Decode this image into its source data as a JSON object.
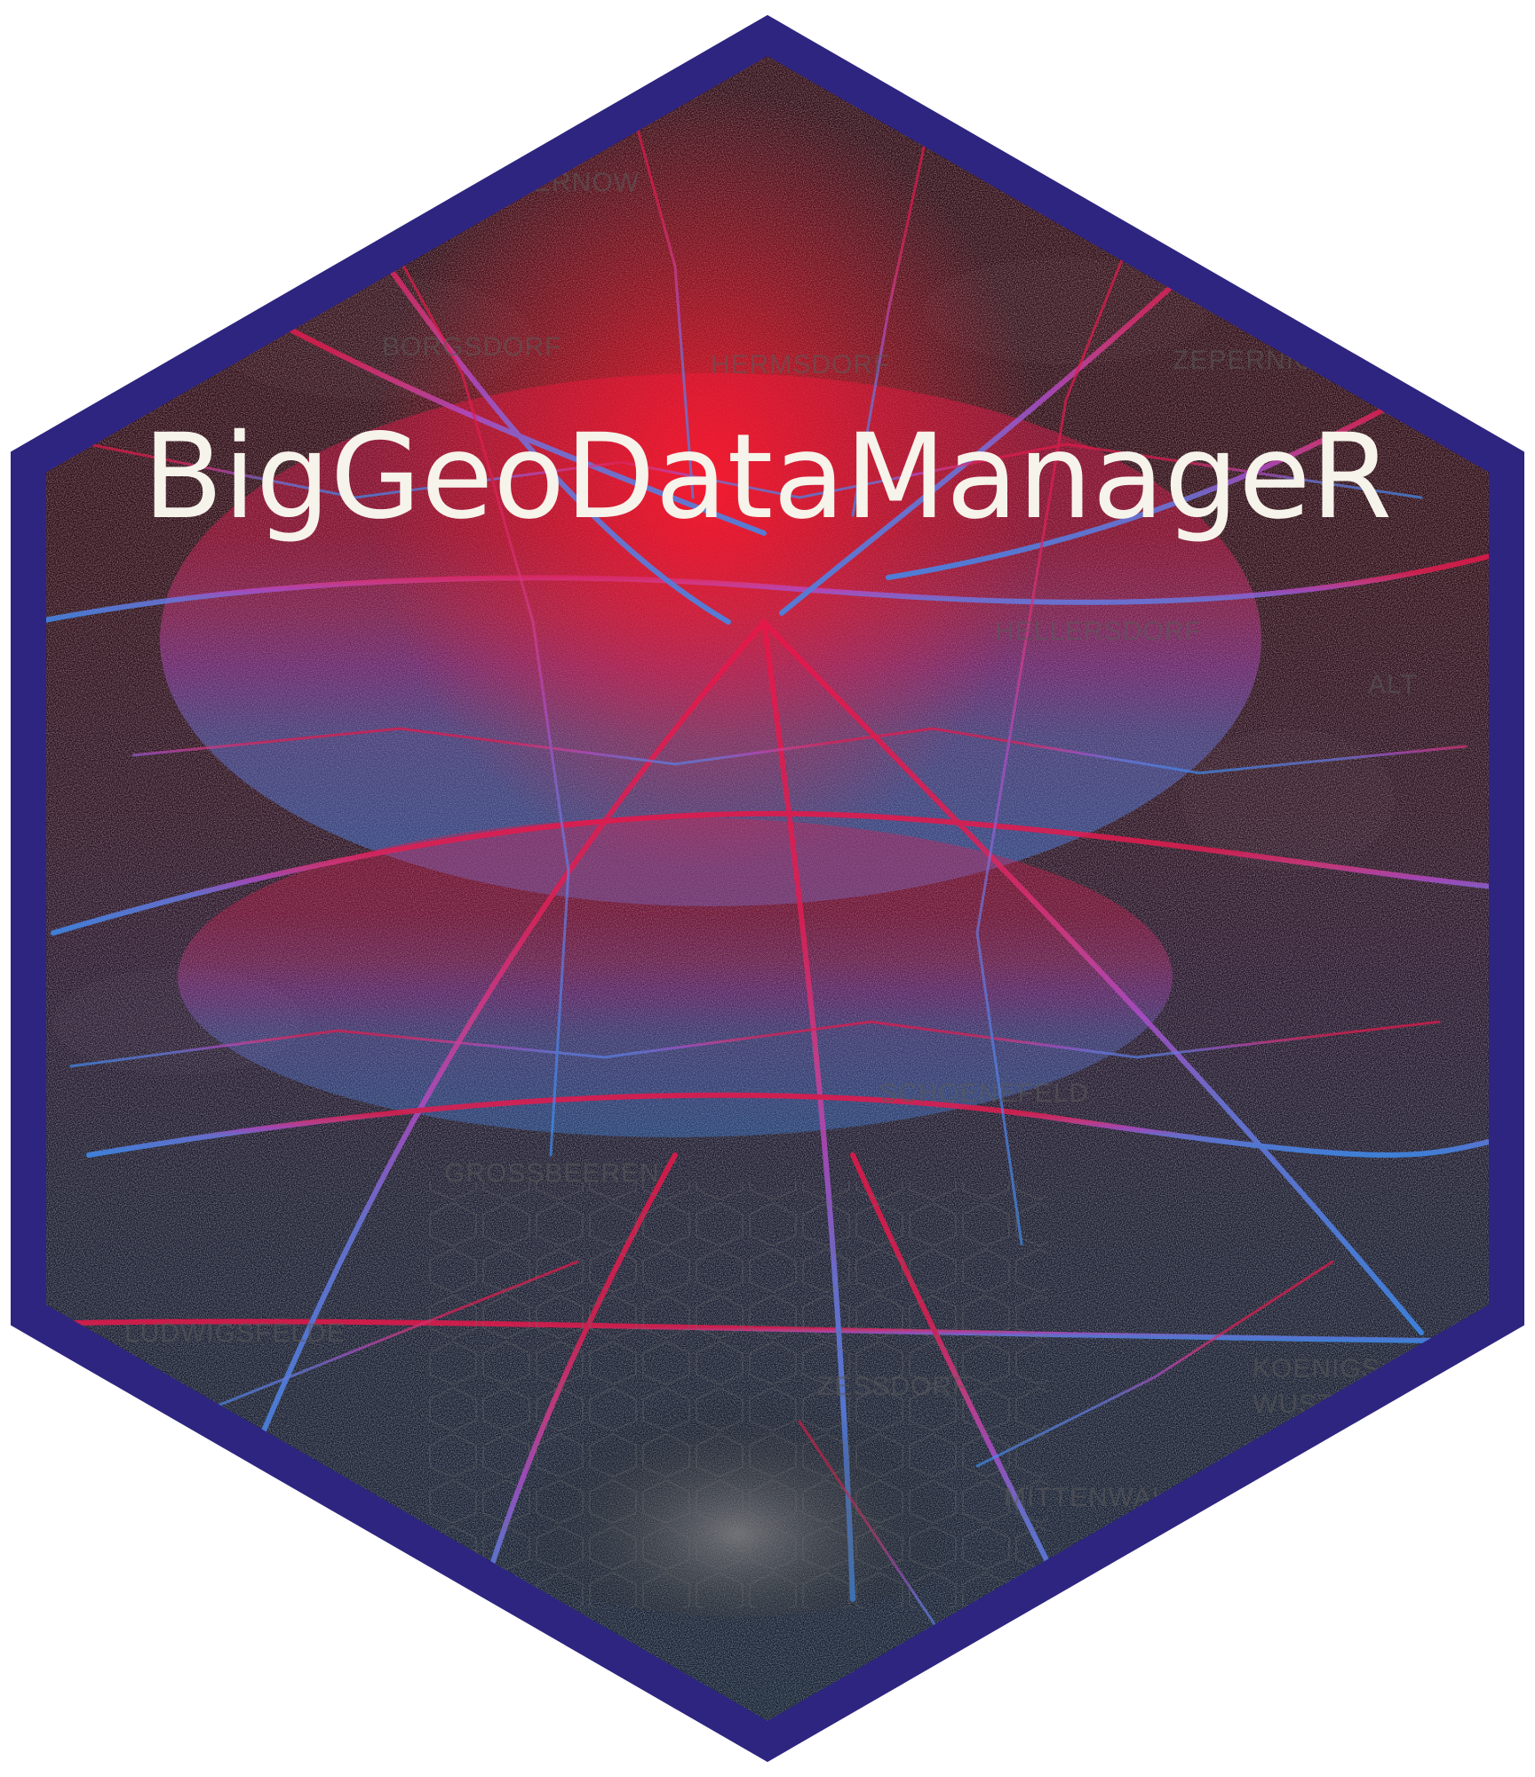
{
  "logo": {
    "title": "BigGeoDataManageR",
    "border_color": "#2e2580",
    "background_color": "#ffffff",
    "title_color": "#f6f3ea",
    "palette": {
      "top": "#e8174a",
      "upper_middle": "#d23c8c",
      "middle": "#b04cc8",
      "lower_middle": "#6b78e0",
      "bottom": "#3f8cf0",
      "hot_spot": "#ff1a2e",
      "map_background": "#050505"
    },
    "map_place_labels": [
      "ERNOW",
      "BORGSDORF",
      "HERMSDORF",
      "ZEPERNICK",
      "HELLERSDORF",
      "ALT",
      "KOENIGS",
      "WUSTERHAUSEN",
      "GROSSBEEREN",
      "SCHOENEFELD",
      "MITTENWALDE",
      "ZESSDORF",
      "LUDWIGSFELDE"
    ]
  }
}
